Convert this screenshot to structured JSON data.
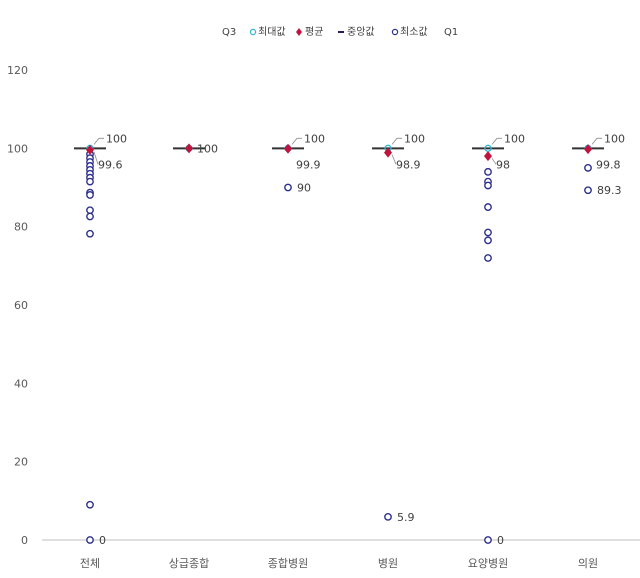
{
  "chart_data": {
    "type": "scatter",
    "title": "",
    "xlabel": "",
    "ylabel": "",
    "ylim": [
      0,
      120
    ],
    "yticks": [
      0,
      20,
      40,
      60,
      80,
      100,
      120
    ],
    "grid": false,
    "legend_position": "top-center",
    "legend": [
      {
        "label": "Q3",
        "marker": "none"
      },
      {
        "label": "최대값",
        "marker": "circle-cyan"
      },
      {
        "label": "평균",
        "marker": "diamond"
      },
      {
        "label": "중앙값",
        "marker": "dash"
      },
      {
        "label": "최소값",
        "marker": "circle-navy"
      },
      {
        "label": "Q1",
        "marker": "none"
      }
    ],
    "colors": {
      "max": "#2eb8d9",
      "mean": "#c0143c",
      "median": "#333333",
      "min_outlier": "#2c2f8c",
      "q": "#2c2f8c"
    },
    "categories": [
      "전체",
      "상급종합",
      "종합병원",
      "병원",
      "요양병원",
      "의원"
    ],
    "series": [
      {
        "name": "최대값",
        "values": [
          100,
          100,
          100,
          100,
          100,
          100
        ]
      },
      {
        "name": "평균",
        "values": [
          99.6,
          100,
          99.9,
          98.9,
          98,
          99.8
        ]
      },
      {
        "name": "중앙값",
        "values": [
          100,
          100,
          100,
          100,
          100,
          100
        ]
      },
      {
        "name": "Q3",
        "values": [
          100,
          100,
          100,
          100,
          100,
          100
        ]
      },
      {
        "name": "Q1",
        "values": [
          100,
          100,
          100,
          100,
          100,
          100
        ]
      },
      {
        "name": "최소값",
        "values": [
          0,
          100,
          90,
          5.9,
          0,
          89.3
        ]
      }
    ],
    "outliers": [
      {
        "category": "전체",
        "values": [
          98.5,
          97.5,
          96.5,
          95.5,
          94.5,
          93.5,
          92.5,
          91.5,
          88.7,
          88.1,
          84.2,
          82.6,
          78.2,
          9,
          0
        ]
      },
      {
        "category": "종합병원",
        "values": [
          90
        ]
      },
      {
        "category": "병원",
        "values": [
          5.9
        ]
      },
      {
        "category": "요양병원",
        "values": [
          94,
          91.5,
          90.5,
          85,
          78.5,
          76.5,
          72,
          0
        ]
      },
      {
        "category": "의원",
        "values": [
          95,
          89.3
        ]
      }
    ],
    "data_labels": [
      {
        "category": "전체",
        "labels": [
          "100",
          "99.6",
          "0"
        ]
      },
      {
        "category": "상급종합",
        "labels": [
          "100"
        ]
      },
      {
        "category": "종합병원",
        "labels": [
          "100",
          "99.9",
          "90"
        ]
      },
      {
        "category": "병원",
        "labels": [
          "100",
          "98.9",
          "5.9"
        ]
      },
      {
        "category": "요양병원",
        "labels": [
          "100",
          "98",
          "0"
        ]
      },
      {
        "category": "의원",
        "labels": [
          "100",
          "99.8",
          "89.3"
        ]
      }
    ]
  }
}
